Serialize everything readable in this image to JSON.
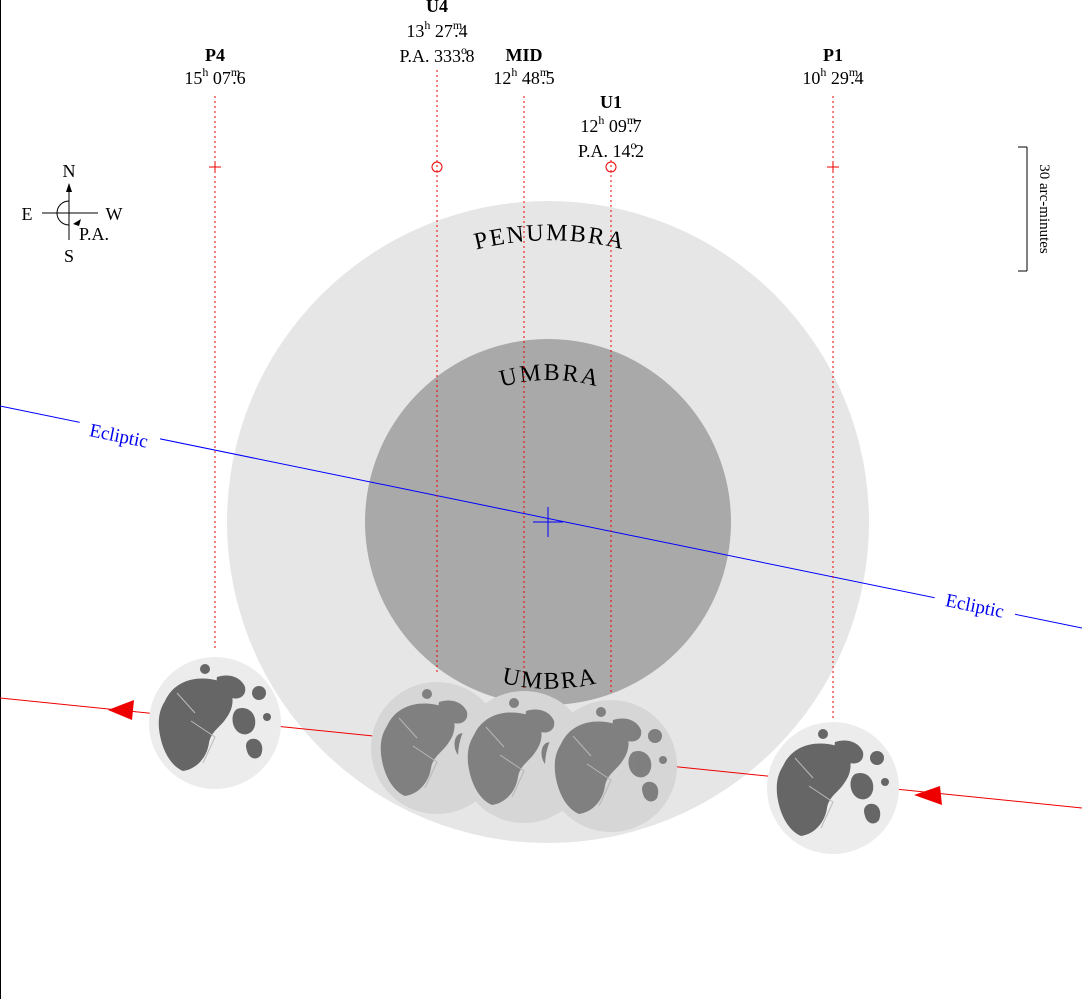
{
  "colors": {
    "penumbra": "#e6e6e6",
    "umbra": "#a9a9a9",
    "ecliptic": "#0000ff",
    "path": "#ee0000",
    "moon_disk": "#ececec",
    "moon_maria": "#666666"
  },
  "compass": {
    "north": "N",
    "south": "S",
    "east": "E",
    "west": "W",
    "pa": "P.A."
  },
  "scale_label": "30 arc-minutes",
  "shadow_labels": {
    "penumbra": "PENUMBRA",
    "umbra": "UMBRA"
  },
  "ecliptic_label": "Ecliptic",
  "contacts": {
    "p4": {
      "name": "P4",
      "h": "15",
      "m": "07",
      "frac": "6"
    },
    "u4": {
      "name": "U4",
      "h": "13",
      "m": "27",
      "frac": "4",
      "pa_label": "P.A.",
      "pa_int": "333",
      "pa_frac": "8"
    },
    "mid": {
      "name": "MID",
      "h": "12",
      "m": "48",
      "frac": "5"
    },
    "u1": {
      "name": "U1",
      "h": "12",
      "m": "09",
      "frac": "7",
      "pa_label": "P.A.",
      "pa_int": "14",
      "pa_frac": "2"
    },
    "p1": {
      "name": "P1",
      "h": "10",
      "m": "29",
      "frac": "4"
    }
  },
  "units": {
    "hour": "h",
    "minute": "m",
    "degree": "o"
  }
}
